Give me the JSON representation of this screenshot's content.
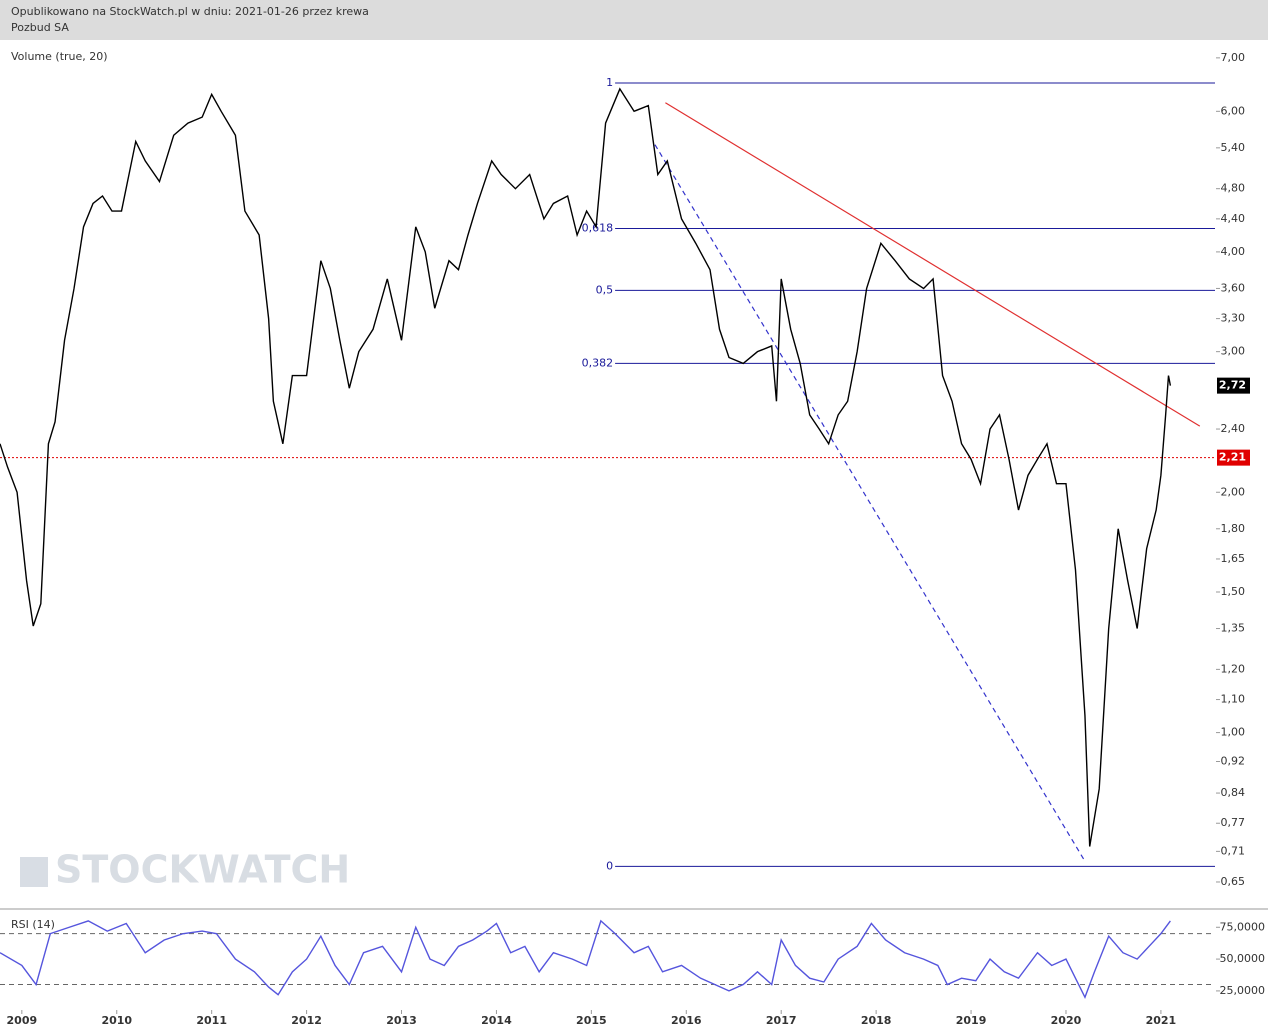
{
  "header": {
    "line1": "Opublikowano na StockWatch.pl w dniu: 2021-01-26 przez krewa",
    "line2": "Pozbud SA"
  },
  "chart_data": [
    {
      "type": "line",
      "annotation": "Volume (true, 20)",
      "watermark": "STOCKWATCH",
      "color": "#000000",
      "log_scale": true,
      "xlim": [
        2008.77,
        2021.57
      ],
      "ylim": [
        0.603,
        7.37
      ],
      "yticks": [
        {
          "value": 7,
          "label": "7,00"
        },
        {
          "value": 6,
          "label": "6,00"
        },
        {
          "value": 5.4,
          "label": "5,40"
        },
        {
          "value": 4.8,
          "label": "4,80"
        },
        {
          "value": 4.4,
          "label": "4,40"
        },
        {
          "value": 4,
          "label": "4,00"
        },
        {
          "value": 3.6,
          "label": "3,60"
        },
        {
          "value": 3.3,
          "label": "3,30"
        },
        {
          "value": 3,
          "label": "3,00"
        },
        {
          "value": 2.4,
          "label": "2,40"
        },
        {
          "value": 2,
          "label": "2,00"
        },
        {
          "value": 1.8,
          "label": "1,80"
        },
        {
          "value": 1.65,
          "label": "1,65"
        },
        {
          "value": 1.5,
          "label": "1,50"
        },
        {
          "value": 1.35,
          "label": "1,35"
        },
        {
          "value": 1.2,
          "label": "1,20"
        },
        {
          "value": 1.1,
          "label": "1,10"
        },
        {
          "value": 1,
          "label": "1,00"
        },
        {
          "value": 0.92,
          "label": "0,92"
        },
        {
          "value": 0.84,
          "label": "0,84"
        },
        {
          "value": 0.77,
          "label": "0,77"
        },
        {
          "value": 0.71,
          "label": "0,71"
        },
        {
          "value": 0.65,
          "label": "0,65"
        }
      ],
      "x": [
        2008.77,
        2008.85,
        2008.95,
        2009.05,
        2009.12,
        2009.2,
        2009.28,
        2009.35,
        2009.45,
        2009.55,
        2009.65,
        2009.75,
        2009.85,
        2009.95,
        2010.05,
        2010.2,
        2010.3,
        2010.45,
        2010.6,
        2010.75,
        2010.9,
        2011.0,
        2011.1,
        2011.25,
        2011.35,
        2011.5,
        2011.6,
        2011.65,
        2011.75,
        2011.85,
        2012.0,
        2012.15,
        2012.25,
        2012.35,
        2012.45,
        2012.55,
        2012.7,
        2012.85,
        2013.0,
        2013.15,
        2013.25,
        2013.35,
        2013.5,
        2013.6,
        2013.7,
        2013.8,
        2013.95,
        2014.05,
        2014.2,
        2014.35,
        2014.5,
        2014.6,
        2014.75,
        2014.85,
        2014.95,
        2015.05,
        2015.15,
        2015.3,
        2015.45,
        2015.6,
        2015.7,
        2015.8,
        2015.95,
        2016.1,
        2016.25,
        2016.35,
        2016.45,
        2016.6,
        2016.75,
        2016.9,
        2016.95,
        2017.0,
        2017.1,
        2017.2,
        2017.3,
        2017.4,
        2017.5,
        2017.6,
        2017.7,
        2017.8,
        2017.9,
        2018.05,
        2018.2,
        2018.35,
        2018.5,
        2018.6,
        2018.7,
        2018.8,
        2018.9,
        2019.0,
        2019.1,
        2019.2,
        2019.3,
        2019.4,
        2019.5,
        2019.6,
        2019.7,
        2019.8,
        2019.9,
        2020.0,
        2020.1,
        2020.2,
        2020.25,
        2020.35,
        2020.45,
        2020.55,
        2020.65,
        2020.75,
        2020.85,
        2020.95,
        2021.0,
        2021.05,
        2021.08,
        2021.1
      ],
      "values": [
        2.3,
        2.15,
        2.0,
        1.55,
        1.36,
        1.45,
        2.3,
        2.45,
        3.1,
        3.6,
        4.3,
        4.6,
        4.7,
        4.5,
        4.5,
        5.5,
        5.2,
        4.9,
        5.6,
        5.8,
        5.9,
        6.3,
        6.0,
        5.6,
        4.5,
        4.2,
        3.3,
        2.6,
        2.3,
        2.8,
        2.8,
        3.9,
        3.6,
        3.1,
        2.7,
        3.0,
        3.2,
        3.7,
        3.1,
        4.3,
        4.0,
        3.4,
        3.9,
        3.8,
        4.2,
        4.6,
        5.2,
        5.0,
        4.8,
        5.0,
        4.4,
        4.6,
        4.7,
        4.2,
        4.5,
        4.3,
        5.8,
        6.4,
        6.0,
        6.1,
        5.0,
        5.2,
        4.4,
        4.1,
        3.8,
        3.2,
        2.95,
        2.9,
        3.0,
        3.05,
        2.6,
        3.7,
        3.2,
        2.9,
        2.5,
        2.4,
        2.3,
        2.5,
        2.6,
        3.0,
        3.6,
        4.1,
        3.9,
        3.7,
        3.6,
        3.7,
        2.8,
        2.6,
        2.3,
        2.2,
        2.05,
        2.4,
        2.5,
        2.2,
        1.9,
        2.1,
        2.2,
        2.3,
        2.05,
        2.05,
        1.6,
        1.05,
        0.72,
        0.85,
        1.35,
        1.8,
        1.55,
        1.35,
        1.7,
        1.9,
        2.1,
        2.5,
        2.8,
        2.72
      ],
      "fib_start": 2015.25,
      "fib_levels": [
        {
          "value": 6.51,
          "label": "1"
        },
        {
          "value": 4.28,
          "label": "0,618"
        },
        {
          "value": 3.58,
          "label": "0,5"
        },
        {
          "value": 2.9,
          "label": "0,382"
        },
        {
          "value": 0.68,
          "label": "0"
        }
      ],
      "fib_color": "#1a1a9a",
      "trendlines": [
        {
          "x": [
            2015.78,
            2021.41
          ],
          "values": [
            6.15,
            2.42
          ],
          "color": "#e03030",
          "dashed": false
        },
        {
          "x": [
            2015.67,
            2020.2
          ],
          "values": [
            5.45,
            0.69
          ],
          "color": "#3333cc",
          "dashed": true
        }
      ],
      "price_labels": [
        {
          "value": 2.72,
          "label": "2,72",
          "color": "#000000"
        },
        {
          "value": 2.21,
          "label": "2,21",
          "color": "#e00000"
        }
      ]
    },
    {
      "type": "line",
      "title": "RSI (14)",
      "color": "#5555dd",
      "xlim": [
        2008.77,
        2021.57
      ],
      "ylim": [
        10,
        87
      ],
      "yticks": [
        {
          "value": 75,
          "label": "75,0000"
        },
        {
          "value": 50,
          "label": "50,0000"
        },
        {
          "value": 25,
          "label": "25,0000"
        }
      ],
      "reference_lines": [
        70,
        30
      ],
      "xticks": [
        2009,
        2010,
        2011,
        2012,
        2013,
        2014,
        2015,
        2016,
        2017,
        2018,
        2019,
        2020,
        2021
      ],
      "x": [
        2008.77,
        2009.0,
        2009.15,
        2009.3,
        2009.5,
        2009.7,
        2009.9,
        2010.1,
        2010.3,
        2010.5,
        2010.7,
        2010.9,
        2011.05,
        2011.25,
        2011.45,
        2011.6,
        2011.7,
        2011.85,
        2012.0,
        2012.15,
        2012.3,
        2012.45,
        2012.6,
        2012.8,
        2013.0,
        2013.15,
        2013.3,
        2013.45,
        2013.6,
        2013.75,
        2013.9,
        2014.0,
        2014.15,
        2014.3,
        2014.45,
        2014.6,
        2014.8,
        2014.95,
        2015.1,
        2015.25,
        2015.45,
        2015.6,
        2015.75,
        2015.95,
        2016.15,
        2016.3,
        2016.45,
        2016.6,
        2016.75,
        2016.9,
        2017.0,
        2017.15,
        2017.3,
        2017.45,
        2017.6,
        2017.8,
        2017.95,
        2018.1,
        2018.3,
        2018.5,
        2018.65,
        2018.75,
        2018.9,
        2019.05,
        2019.2,
        2019.35,
        2019.5,
        2019.7,
        2019.85,
        2020.0,
        2020.1,
        2020.2,
        2020.3,
        2020.45,
        2020.6,
        2020.75,
        2020.9,
        2021.0,
        2021.1
      ],
      "values": [
        55,
        45,
        30,
        70,
        75,
        80,
        72,
        78,
        55,
        65,
        70,
        72,
        70,
        50,
        40,
        28,
        22,
        40,
        50,
        68,
        45,
        30,
        55,
        60,
        40,
        75,
        50,
        45,
        60,
        65,
        72,
        78,
        55,
        60,
        40,
        55,
        50,
        45,
        80,
        70,
        55,
        60,
        40,
        45,
        35,
        30,
        25,
        30,
        40,
        30,
        65,
        45,
        35,
        32,
        50,
        60,
        78,
        65,
        55,
        50,
        45,
        30,
        35,
        33,
        50,
        40,
        35,
        55,
        45,
        50,
        35,
        20,
        40,
        68,
        55,
        50,
        62,
        70,
        80
      ]
    }
  ]
}
